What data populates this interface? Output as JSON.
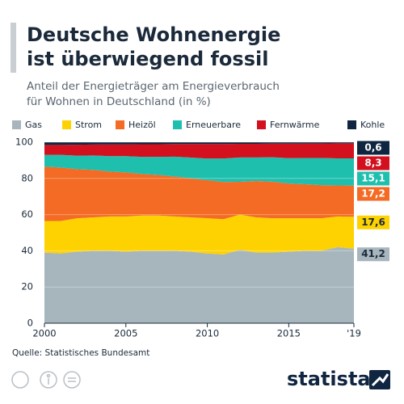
{
  "chart_data": {
    "type": "stacked_area",
    "title": [
      "Deutsche Wohnenergie",
      "ist überwiegend fossil"
    ],
    "subtitle": [
      "Anteil der Energieträger am Energieverbrauch",
      "für Wohnen in Deutschland (in %)"
    ],
    "source": "Quelle: Statistisches Bundesamt",
    "logo": "statista",
    "x": [
      2000,
      2001,
      2002,
      2003,
      2004,
      2005,
      2006,
      2007,
      2008,
      2009,
      2010,
      2011,
      2012,
      2013,
      2014,
      2015,
      2016,
      2017,
      2018,
      2019
    ],
    "xlim": [
      2000,
      2019
    ],
    "xticks": [
      2000,
      2005,
      2010,
      2015,
      {
        "value": 2019,
        "label": "'19"
      }
    ],
    "ylim": [
      0,
      100
    ],
    "yticks": [
      0,
      20,
      40,
      60,
      80,
      100
    ],
    "grid": true,
    "series": [
      {
        "name": "Gas",
        "color": "#a7b5bd",
        "label_text": "#1b2a3a",
        "values": [
          39,
          38.5,
          39.5,
          40,
          40,
          39.5,
          40,
          40,
          40,
          39.5,
          38.5,
          38,
          40.5,
          39,
          39,
          39.5,
          40,
          40,
          42,
          41.2
        ],
        "value_labels": [
          null,
          null,
          null,
          null,
          null,
          null,
          null,
          null,
          null,
          null,
          null,
          null,
          null,
          null,
          null,
          null,
          null,
          null,
          null,
          "41,2"
        ]
      },
      {
        "name": "Strom",
        "color": "#fdd200",
        "label_text": "#1b2a3a",
        "values": [
          17.5,
          18,
          18.5,
          18.5,
          19,
          19.5,
          19.5,
          19.5,
          19,
          19,
          19.5,
          19.5,
          19.5,
          19.5,
          19,
          18.5,
          18,
          18,
          17,
          17.6
        ],
        "value_labels": [
          null,
          null,
          null,
          null,
          null,
          null,
          null,
          null,
          null,
          null,
          null,
          null,
          null,
          null,
          null,
          null,
          null,
          null,
          null,
          "17,6"
        ]
      },
      {
        "name": "Heizöl",
        "color": "#f36b24",
        "label_text": "#ffffff",
        "values": [
          30,
          29.5,
          27.1,
          26.2,
          24.8,
          24.3,
          22.9,
          22.4,
          22,
          21.5,
          21,
          20.5,
          18.1,
          20.1,
          20.2,
          19.2,
          18.8,
          18.3,
          17.1,
          17.2
        ],
        "value_labels": [
          null,
          null,
          null,
          null,
          null,
          null,
          null,
          null,
          null,
          null,
          null,
          null,
          null,
          null,
          null,
          null,
          null,
          null,
          null,
          "17,2"
        ]
      },
      {
        "name": "Erneuerbare",
        "color": "#1fbfae",
        "label_text": "#ffffff",
        "values": [
          6.5,
          7,
          7.5,
          8,
          8.5,
          9,
          9.5,
          10,
          11,
          11.5,
          12,
          13,
          13.5,
          13,
          13.5,
          14,
          14.5,
          15,
          15,
          15.1
        ],
        "value_labels": [
          null,
          null,
          null,
          null,
          null,
          null,
          null,
          null,
          null,
          null,
          null,
          null,
          null,
          null,
          null,
          null,
          null,
          null,
          null,
          "15,1"
        ]
      },
      {
        "name": "Fernwärme",
        "color": "#d2101e",
        "label_text": "#ffffff",
        "values": [
          5.5,
          5.5,
          6,
          6,
          6.5,
          6.5,
          7,
          7,
          7,
          7.5,
          8,
          8,
          7.5,
          7.5,
          7.5,
          8,
          8,
          8,
          8.3,
          8.3
        ],
        "value_labels": [
          null,
          null,
          null,
          null,
          null,
          null,
          null,
          null,
          null,
          null,
          null,
          null,
          null,
          null,
          null,
          null,
          null,
          null,
          null,
          "8,3"
        ]
      },
      {
        "name": "Kohle",
        "color": "#0f2540",
        "label_text": "#ffffff",
        "values": [
          1.5,
          1.5,
          1.4,
          1.3,
          1.2,
          1.2,
          1.1,
          1.1,
          1,
          1,
          1,
          1,
          0.9,
          0.9,
          0.8,
          0.8,
          0.7,
          0.7,
          0.6,
          0.6
        ],
        "value_labels": [
          null,
          null,
          null,
          null,
          null,
          null,
          null,
          null,
          null,
          null,
          null,
          null,
          null,
          null,
          null,
          null,
          null,
          null,
          null,
          "0,6"
        ]
      }
    ]
  }
}
